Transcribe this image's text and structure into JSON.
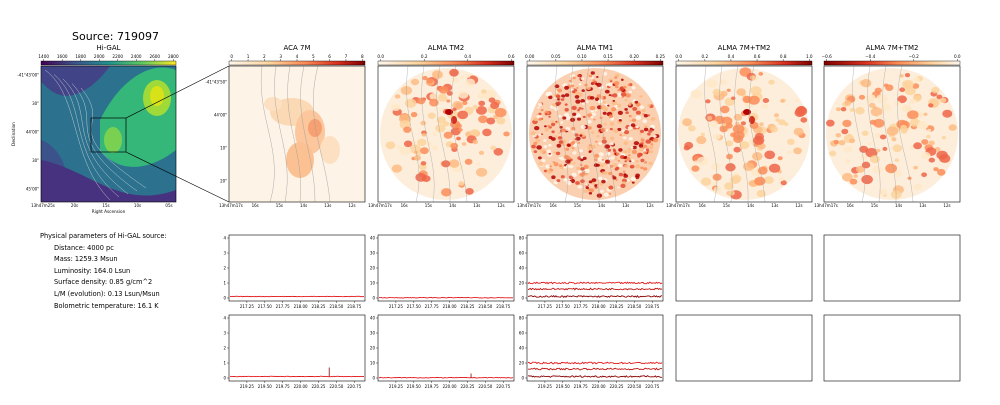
{
  "source_title": "Source: 719097",
  "panels": [
    {
      "title": "Hi-GAL",
      "colorbar_ticks": [
        "1400",
        "1600",
        "1800",
        "2000",
        "2200",
        "2400",
        "2600",
        "2800"
      ],
      "colormap": "viridis"
    },
    {
      "title": "ACA 7M",
      "colorbar_ticks": [
        "0",
        "1",
        "2",
        "3",
        "4",
        "5",
        "6",
        "7",
        "8"
      ],
      "colormap": "OrRd"
    },
    {
      "title": "ALMA TM2",
      "colorbar_ticks": [
        "0.0",
        "0.2",
        "0.4",
        "0.6"
      ],
      "colormap": "OrRd"
    },
    {
      "title": "ALMA TM1",
      "colorbar_ticks": [
        "0.00",
        "0.05",
        "0.10",
        "0.15",
        "0.20",
        "0.25"
      ],
      "colormap": "OrRd"
    },
    {
      "title": "ALMA 7M+TM2",
      "colorbar_ticks": [
        "0.0",
        "0.2",
        "0.4",
        "0.6",
        "0.8",
        "1.0"
      ],
      "colormap": "OrRd"
    },
    {
      "title": "ALMA 7M+TM2",
      "colorbar_ticks": [
        "−0.6",
        "−0.4",
        "−0.2",
        "0.0"
      ],
      "colormap": "OrRd"
    }
  ],
  "higal_axes": {
    "ylabel": "Declination",
    "xlabel": "Right Ascension",
    "yticks": [
      "-41°43'00\"",
      "30\"",
      "44'00\"",
      "30\"",
      "45'00\""
    ],
    "xticks": [
      "13h47m25s",
      "20s",
      "15s",
      "10s",
      "05s"
    ]
  },
  "zoom_axes": {
    "yticks": [
      "-41°43'50\"",
      "44'00\"",
      "10\"",
      "20\""
    ],
    "xticks": [
      "13h47m17s",
      "16s",
      "15s",
      "14s",
      "13s",
      "12s"
    ]
  },
  "params": {
    "header": "Physical parameters of Hi-GAL source:",
    "lines": [
      "Distance: 4000 pc",
      "Mass: 1259.3 Msun",
      "Luminosity: 164.0 Lsun",
      "Surface density: 0.85 g/cm^2",
      "L/M (evolution): 0.13 Lsun/Msun",
      "Bolometric temperature: 16.1 K"
    ]
  },
  "chart_data": [
    {
      "type": "line",
      "panel": "spectrum-aca-row1",
      "x_range": [
        217.0,
        218.9
      ],
      "ylim": [
        0,
        4
      ],
      "yticks": [
        "0",
        "1",
        "2",
        "3",
        "4"
      ],
      "xticks": [
        "217.25",
        "217.50",
        "217.75",
        "218.00",
        "218.25",
        "218.50",
        "218.75"
      ],
      "series": [
        {
          "values": [
            0.1,
            0.1
          ]
        }
      ]
    },
    {
      "type": "line",
      "panel": "spectrum-tm2-row1",
      "x_range": [
        217.0,
        218.9
      ],
      "ylim": [
        0,
        40
      ],
      "yticks": [
        "0",
        "10",
        "20",
        "30",
        "40"
      ],
      "xticks": [
        "217.25",
        "217.50",
        "217.75",
        "218.00",
        "218.25",
        "218.50",
        "218.75"
      ],
      "series": [
        {
          "values": [
            0.2,
            0.2
          ]
        }
      ]
    },
    {
      "type": "line",
      "panel": "spectrum-tm1-row1",
      "x_range": [
        217.0,
        218.9
      ],
      "ylim": [
        0,
        80
      ],
      "yticks": [
        "0",
        "20",
        "40",
        "60",
        "80"
      ],
      "xticks": [
        "217.25",
        "217.50",
        "217.75",
        "218.00",
        "218.25",
        "218.50",
        "218.75"
      ],
      "series": [
        {
          "values": [
            20,
            20
          ]
        },
        {
          "values": [
            12,
            12
          ]
        },
        {
          "values": [
            2,
            2
          ]
        }
      ]
    },
    {
      "type": "line",
      "panel": "spectrum-aca-row2",
      "x_range": [
        219.0,
        220.9
      ],
      "ylim": [
        0,
        4
      ],
      "yticks": [
        "0",
        "1",
        "2",
        "3",
        "4"
      ],
      "xticks": [
        "219.25",
        "219.50",
        "219.75",
        "220.00",
        "220.25",
        "220.50",
        "220.75"
      ],
      "series": [
        {
          "values": [
            0.1,
            0.1
          ]
        }
      ],
      "peaks": [
        {
          "x": 220.4,
          "y": 0.7
        }
      ]
    },
    {
      "type": "line",
      "panel": "spectrum-tm2-row2",
      "x_range": [
        219.0,
        220.9
      ],
      "ylim": [
        0,
        40
      ],
      "yticks": [
        "0",
        "10",
        "20",
        "30",
        "40"
      ],
      "xticks": [
        "219.25",
        "219.50",
        "219.75",
        "220.00",
        "220.25",
        "220.50",
        "220.75"
      ],
      "series": [
        {
          "values": [
            0.2,
            0.2
          ]
        }
      ],
      "peaks": [
        {
          "x": 220.3,
          "y": 3
        }
      ]
    },
    {
      "type": "line",
      "panel": "spectrum-tm1-row2",
      "x_range": [
        219.0,
        220.9
      ],
      "ylim": [
        0,
        80
      ],
      "yticks": [
        "0",
        "20",
        "40",
        "60",
        "80"
      ],
      "xticks": [
        "219.25",
        "219.50",
        "219.75",
        "220.00",
        "220.25",
        "220.50",
        "220.75"
      ],
      "series": [
        {
          "values": [
            20,
            20
          ]
        },
        {
          "values": [
            12,
            12
          ]
        },
        {
          "values": [
            2,
            2
          ]
        }
      ]
    }
  ]
}
